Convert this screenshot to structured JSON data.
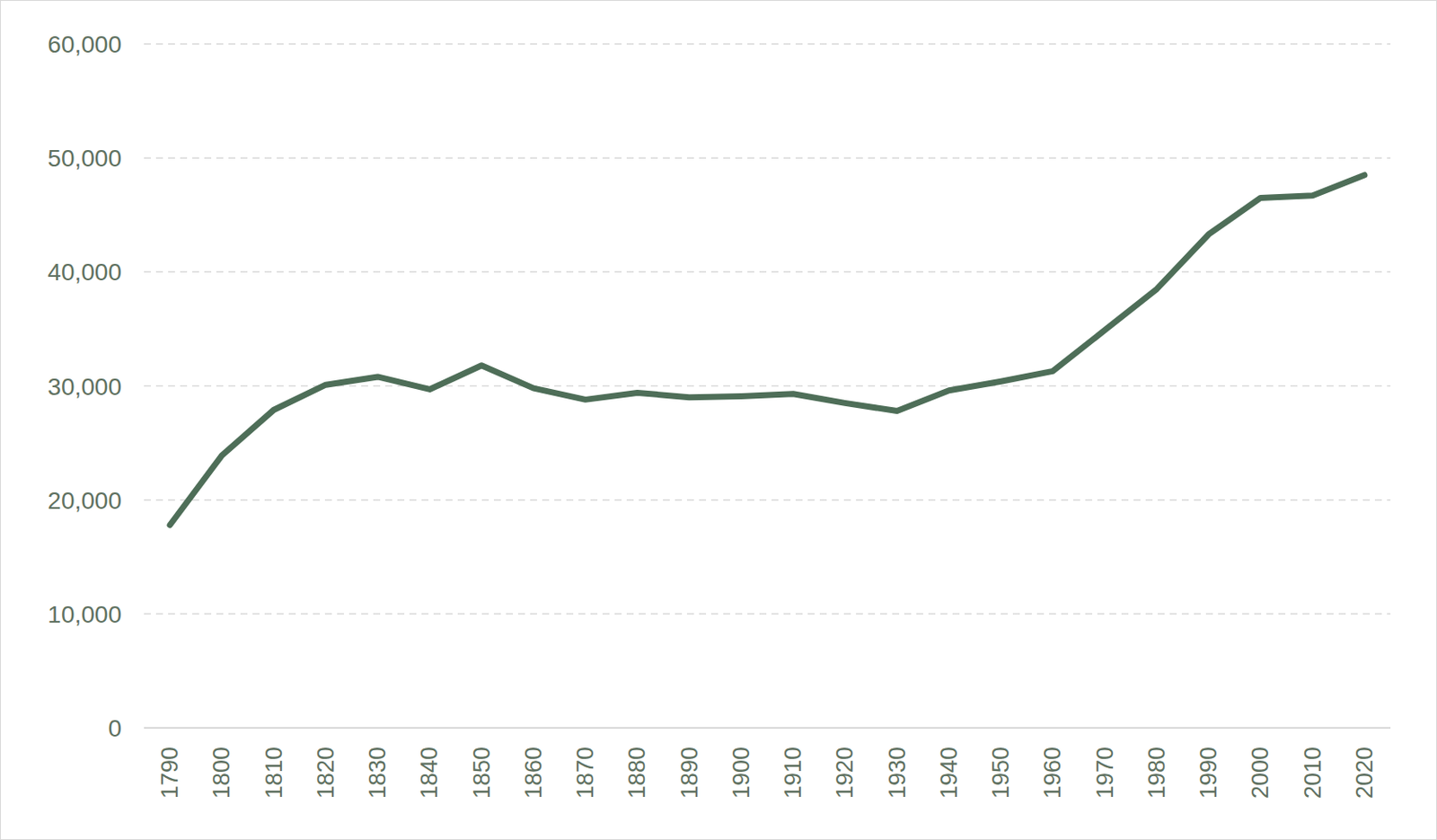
{
  "chart_data": {
    "type": "line",
    "categories": [
      "1790",
      "1800",
      "1810",
      "1820",
      "1830",
      "1840",
      "1850",
      "1860",
      "1870",
      "1880",
      "1890",
      "1900",
      "1910",
      "1920",
      "1930",
      "1940",
      "1950",
      "1960",
      "1970",
      "1980",
      "1990",
      "2000",
      "2010",
      "2020"
    ],
    "values": [
      17800,
      23900,
      27900,
      30100,
      30800,
      29700,
      31800,
      29800,
      28800,
      29400,
      29000,
      29100,
      29300,
      28500,
      27800,
      29600,
      30400,
      31300,
      34900,
      38500,
      43300,
      46500,
      46700,
      48500
    ],
    "color": "#4e6e58",
    "ylim": [
      0,
      60000
    ],
    "yticks": [
      0,
      {
        "value": 10000,
        "label": "10,000"
      },
      {
        "value": 20000,
        "label": "20,000"
      },
      {
        "value": 30000,
        "label": "30,000"
      },
      {
        "value": 40000,
        "label": "40,000"
      },
      {
        "value": 50000,
        "label": "50,000"
      },
      {
        "value": 60000,
        "label": "60,000"
      }
    ],
    "grid": true
  }
}
